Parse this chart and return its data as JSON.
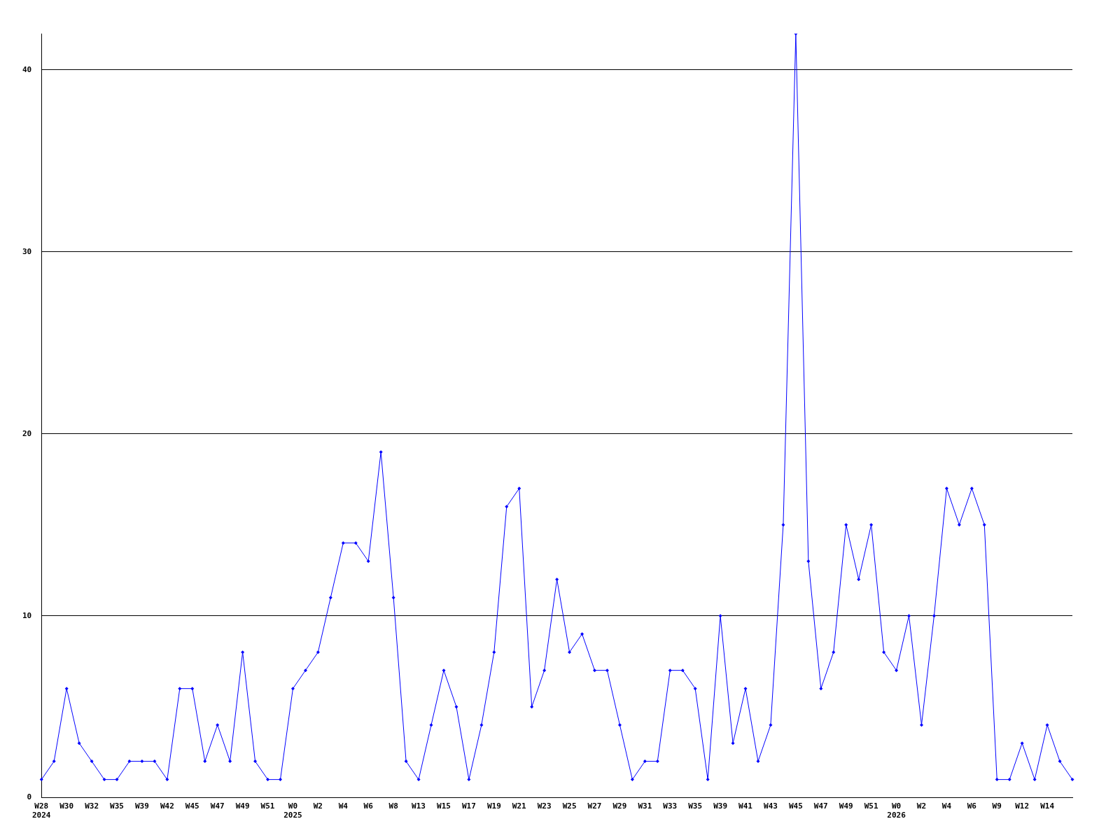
{
  "chart_data": {
    "type": "line",
    "categories": [
      "W28\n2024",
      null,
      "W30",
      null,
      "W32",
      null,
      "W35",
      null,
      "W39",
      null,
      "W42",
      null,
      "W45",
      null,
      "W47",
      null,
      "W49",
      null,
      "W51",
      null,
      "W0\n2025",
      null,
      "W2",
      null,
      "W4",
      null,
      "W6",
      null,
      "W8",
      null,
      "W13",
      null,
      "W15",
      null,
      "W17",
      null,
      "W19",
      null,
      "W21",
      null,
      "W23",
      null,
      "W25",
      null,
      "W27",
      null,
      "W29",
      null,
      "W31",
      null,
      "W33",
      null,
      "W35",
      null,
      "W39",
      null,
      "W41",
      null,
      "W43",
      null,
      "W45",
      null,
      "W47",
      null,
      "W49",
      null,
      "W51",
      null,
      "W0\n2026",
      null,
      "W2",
      null,
      "W4",
      null,
      "W6",
      null,
      "W9",
      null,
      "W12",
      null,
      "W14",
      null,
      null
    ],
    "series": [
      {
        "color": "#0000ff",
        "values": [
          1,
          2,
          6,
          3,
          2,
          1,
          1,
          2,
          2,
          2,
          1,
          6,
          6,
          2,
          4,
          2,
          8,
          2,
          1,
          1,
          6,
          7,
          8,
          11,
          14,
          14,
          13,
          19,
          11,
          2,
          1,
          4,
          7,
          5,
          1,
          4,
          8,
          16,
          17,
          5,
          7,
          12,
          8,
          9,
          7,
          7,
          4,
          1,
          2,
          2,
          7,
          7,
          6,
          1,
          10,
          3,
          6,
          2,
          4,
          15,
          42,
          13,
          6,
          8,
          15,
          12,
          15,
          8,
          7,
          10,
          4,
          10,
          17,
          15,
          17,
          15,
          1,
          1,
          3,
          1,
          4,
          2,
          1
        ]
      }
    ],
    "ylim": [
      0,
      42
    ],
    "yticks": [
      0,
      10,
      20,
      30,
      40
    ],
    "grid": "y",
    "legend": false,
    "marker": "diamond",
    "line_style": "solid"
  }
}
